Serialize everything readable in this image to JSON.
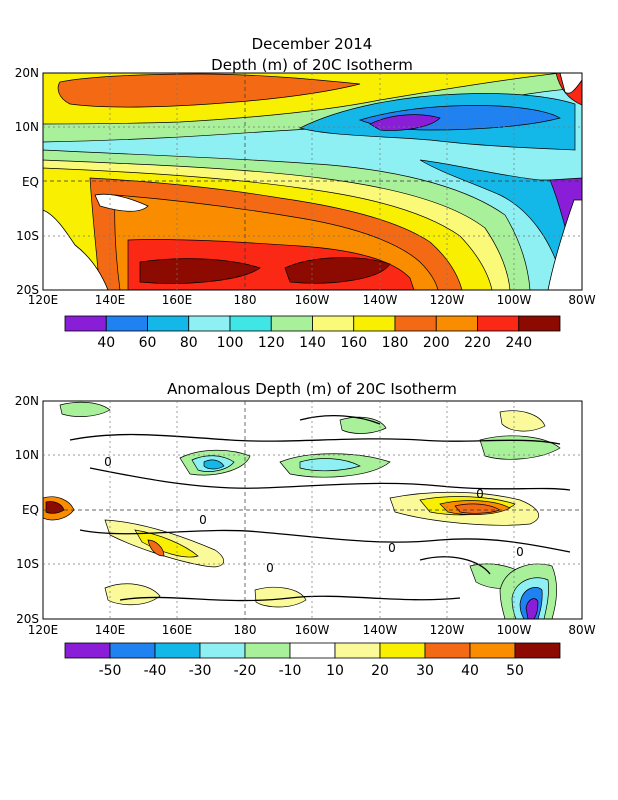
{
  "chart_data": [
    {
      "type": "heatmap",
      "title": "December 2014",
      "subtitle": "Depth (m) of 20C Isotherm",
      "xtick_labels": [
        "120E",
        "140E",
        "160E",
        "180",
        "160W",
        "140W",
        "120W",
        "100W",
        "80W"
      ],
      "ytick_labels": [
        "20N",
        "10N",
        "EQ",
        "10S",
        "20S"
      ],
      "xlim": [
        120,
        280
      ],
      "ylim": [
        -20,
        20
      ],
      "grid": true,
      "colorbar": {
        "labels": [
          "40",
          "60",
          "80",
          "100",
          "120",
          "140",
          "160",
          "180",
          "200",
          "220",
          "240"
        ],
        "colors": [
          "#8a1ed8",
          "#1f82f0",
          "#14b8e8",
          "#8ff0f4",
          "#3ee6e6",
          "#a8f09a",
          "#fafa78",
          "#f8f000",
          "#f46a14",
          "#fa8c00",
          "#fa2814",
          "#8c0a00"
        ]
      }
    },
    {
      "type": "heatmap",
      "title": "Anomalous Depth (m) of 20C Isotherm",
      "xtick_labels": [
        "120E",
        "140E",
        "160E",
        "180",
        "160W",
        "140W",
        "120W",
        "100W",
        "80W"
      ],
      "ytick_labels": [
        "20N",
        "10N",
        "EQ",
        "10S",
        "20S"
      ],
      "xlim": [
        120,
        280
      ],
      "ylim": [
        -20,
        20
      ],
      "grid": true,
      "contour_labels": [
        "0"
      ],
      "colorbar": {
        "labels": [
          "-50",
          "-40",
          "-30",
          "-20",
          "-10",
          "10",
          "20",
          "30",
          "40",
          "50"
        ],
        "colors": [
          "#8a1ed8",
          "#1f82f0",
          "#14b8e8",
          "#8ff0f4",
          "#a8f09a",
          "#ffffff",
          "#fafa9a",
          "#f8f000",
          "#f46a14",
          "#fa8c00",
          "#8c0a00"
        ]
      }
    }
  ]
}
